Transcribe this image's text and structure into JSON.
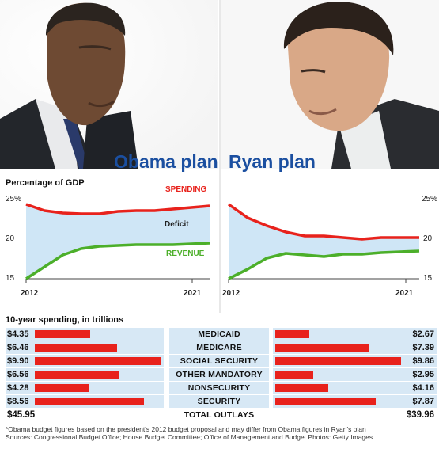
{
  "titles": {
    "obama": "Obama plan",
    "ryan": "Ryan plan"
  },
  "photos": {
    "left": "person-photo",
    "right": "person-photo"
  },
  "colors": {
    "spending": "#e8221c",
    "revenue": "#4caf2a",
    "deficit_fill": "#cfe6f6",
    "plan_title": "#1b4fa0",
    "table_cell": "#d7e8f5"
  },
  "gdp_label": "Percentage of GDP",
  "labels": {
    "spending": "SPENDING",
    "revenue": "REVENUE",
    "deficit": "Deficit"
  },
  "chart_data": [
    {
      "type": "line",
      "title": "Obama plan",
      "x_start": "2012",
      "x_end": "2021",
      "y_ticks": [
        "25%",
        "20",
        "15"
      ],
      "ylim": [
        15,
        25
      ],
      "x": [
        2012,
        2013,
        2014,
        2015,
        2016,
        2017,
        2018,
        2019,
        2020,
        2021,
        2022
      ],
      "series": [
        {
          "name": "SPENDING",
          "values": [
            24.2,
            23.4,
            23.1,
            23.0,
            23.0,
            23.3,
            23.4,
            23.4,
            23.6,
            23.8,
            24.0
          ]
        },
        {
          "name": "REVENUE",
          "values": [
            14.8,
            16.3,
            17.8,
            18.6,
            18.9,
            19.0,
            19.1,
            19.1,
            19.1,
            19.2,
            19.3
          ]
        }
      ],
      "area": "Deficit"
    },
    {
      "type": "line",
      "title": "Ryan plan",
      "x_start": "2012",
      "x_end": "2021",
      "y_ticks": [
        "25%",
        "20",
        "15"
      ],
      "ylim": [
        15,
        25
      ],
      "x": [
        2012,
        2013,
        2014,
        2015,
        2016,
        2017,
        2018,
        2019,
        2020,
        2021,
        2022
      ],
      "series": [
        {
          "name": "SPENDING",
          "values": [
            24.2,
            22.5,
            21.5,
            20.7,
            20.2,
            20.2,
            20.0,
            19.8,
            20.0,
            20.0,
            20.0
          ]
        },
        {
          "name": "REVENUE",
          "values": [
            14.8,
            16.0,
            17.4,
            18.0,
            17.8,
            17.6,
            17.9,
            17.9,
            18.1,
            18.2,
            18.3
          ]
        }
      ],
      "area": "Deficit"
    }
  ],
  "spending_label": "10-year spending, in trillions",
  "spending_table": {
    "rows": [
      {
        "category": "MEDICAID",
        "obama": "$4.35",
        "obama_value": 4.35,
        "ryan": "$2.67",
        "ryan_value": 2.67
      },
      {
        "category": "MEDICARE",
        "obama": "$6.46",
        "obama_value": 6.46,
        "ryan": "$7.39",
        "ryan_value": 7.39
      },
      {
        "category": "SOCIAL SECURITY",
        "obama": "$9.90",
        "obama_value": 9.9,
        "ryan": "$9.86",
        "ryan_value": 9.86
      },
      {
        "category": "OTHER MANDATORY",
        "obama": "$6.56",
        "obama_value": 6.56,
        "ryan": "$2.95",
        "ryan_value": 2.95
      },
      {
        "category": "NONSECURITY",
        "obama": "$4.28",
        "obama_value": 4.28,
        "ryan": "$4.16",
        "ryan_value": 4.16
      },
      {
        "category": "SECURITY",
        "obama": "$8.56",
        "obama_value": 8.56,
        "ryan": "$7.87",
        "ryan_value": 7.87
      }
    ],
    "total": {
      "category": "TOTAL OUTLAYS",
      "obama": "$45.95",
      "ryan": "$39.96"
    }
  },
  "footnote": "*Obama budget figures based on the president's 2012 budget proposal and may differ from Obama figures in Ryan's plan",
  "sources": "Sources: Congressional Budget Office; House Budget Committee; Office of Management and Budget    Photos: Getty Images"
}
